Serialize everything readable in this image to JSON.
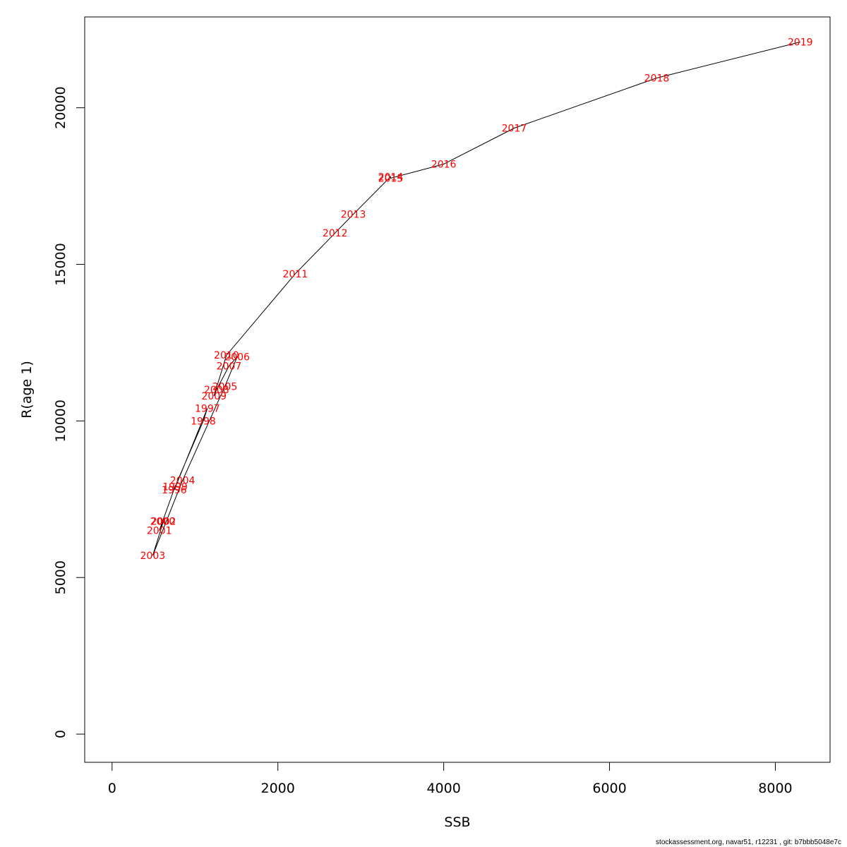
{
  "chart_data": {
    "type": "line",
    "title": "",
    "xlabel": "SSB",
    "ylabel": "R(age 1)",
    "xlim": [
      -330,
      8660
    ],
    "ylim": [
      -900,
      22900
    ],
    "x_ticks": [
      0,
      2000,
      4000,
      6000,
      8000
    ],
    "y_ticks": [
      0,
      5000,
      10000,
      15000,
      20000
    ],
    "x_tick_labels": [
      "0",
      "2000",
      "4000",
      "6000",
      "8000"
    ],
    "y_tick_labels": [
      "0",
      "5000",
      "10000",
      "15000",
      "20000"
    ],
    "grid": false,
    "legend": "none",
    "line_color": "#000000",
    "label_color": "#ff0000",
    "points": [
      {
        "year": "1996",
        "x": 750,
        "y": 7800
      },
      {
        "year": "1997",
        "x": 1150,
        "y": 10400
      },
      {
        "year": "1998",
        "x": 1100,
        "y": 10000
      },
      {
        "year": "1999",
        "x": 760,
        "y": 7900
      },
      {
        "year": "2000",
        "x": 610,
        "y": 6800
      },
      {
        "year": "2001",
        "x": 570,
        "y": 6500
      },
      {
        "year": "2002",
        "x": 620,
        "y": 6800
      },
      {
        "year": "2003",
        "x": 490,
        "y": 5700
      },
      {
        "year": "2004",
        "x": 850,
        "y": 8100
      },
      {
        "year": "2005",
        "x": 1360,
        "y": 11100
      },
      {
        "year": "2006",
        "x": 1510,
        "y": 12050
      },
      {
        "year": "2007",
        "x": 1410,
        "y": 11750
      },
      {
        "year": "2008",
        "x": 1260,
        "y": 11000
      },
      {
        "year": "2009",
        "x": 1230,
        "y": 10800
      },
      {
        "year": "2010",
        "x": 1380,
        "y": 12100
      },
      {
        "year": "2011",
        "x": 2210,
        "y": 14700
      },
      {
        "year": "2012",
        "x": 2690,
        "y": 16000
      },
      {
        "year": "2013",
        "x": 2910,
        "y": 16600
      },
      {
        "year": "2014",
        "x": 3360,
        "y": 17800
      },
      {
        "year": "2015",
        "x": 3360,
        "y": 17750
      },
      {
        "year": "2016",
        "x": 4000,
        "y": 18200
      },
      {
        "year": "2017",
        "x": 4850,
        "y": 19350
      },
      {
        "year": "2018",
        "x": 6570,
        "y": 20950
      },
      {
        "year": "2019",
        "x": 8300,
        "y": 22100
      }
    ]
  },
  "footer": "stockassessment.org, navar51, r12231 , git: b7bbb5048e7c"
}
